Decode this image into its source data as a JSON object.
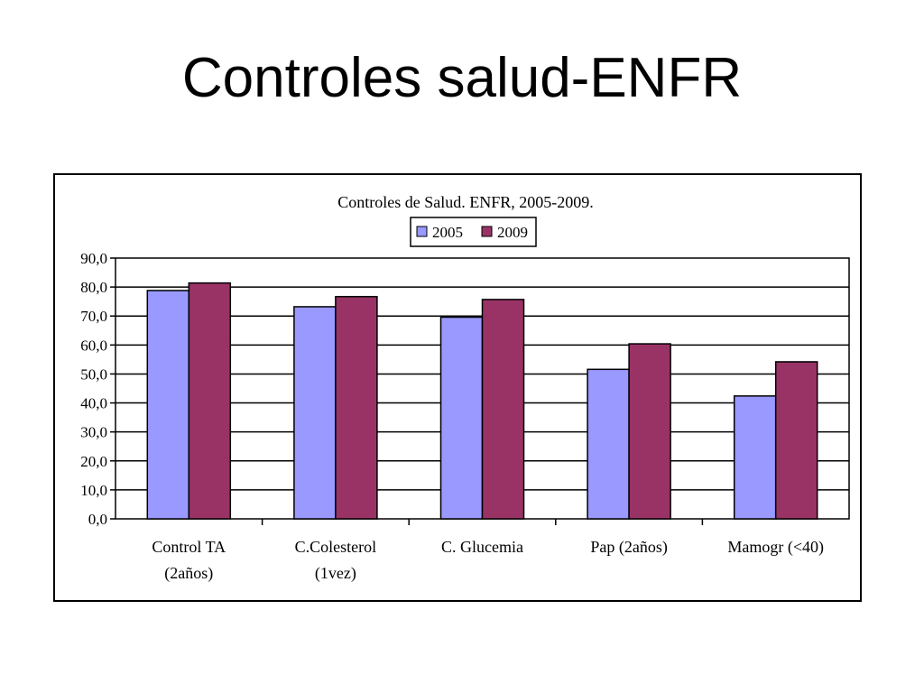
{
  "slide": {
    "title": "Controles salud-ENFR"
  },
  "chart_data": {
    "type": "bar",
    "title": "Controles de Salud. ENFR, 2005-2009.",
    "xlabel": "",
    "ylabel": "",
    "categories": [
      [
        "Control TA",
        "(2años)"
      ],
      [
        "C.Colesterol",
        "(1vez)"
      ],
      [
        "C. Glucemia"
      ],
      [
        "Pap (2años)"
      ],
      [
        "Mamogr (<40)"
      ]
    ],
    "series": [
      {
        "name": "2005",
        "color": "#9999ff",
        "values": [
          78.8,
          73.2,
          69.6,
          51.6,
          42.4
        ]
      },
      {
        "name": "2009",
        "color": "#993366",
        "values": [
          81.4,
          76.7,
          75.7,
          60.4,
          54.2
        ]
      }
    ],
    "ylim": [
      0,
      90
    ],
    "yticks": [
      "0,0",
      "10,0",
      "20,0",
      "30,0",
      "40,0",
      "50,0",
      "60,0",
      "70,0",
      "80,0",
      "90,0"
    ],
    "grid": true,
    "legend_position": "top-center"
  }
}
